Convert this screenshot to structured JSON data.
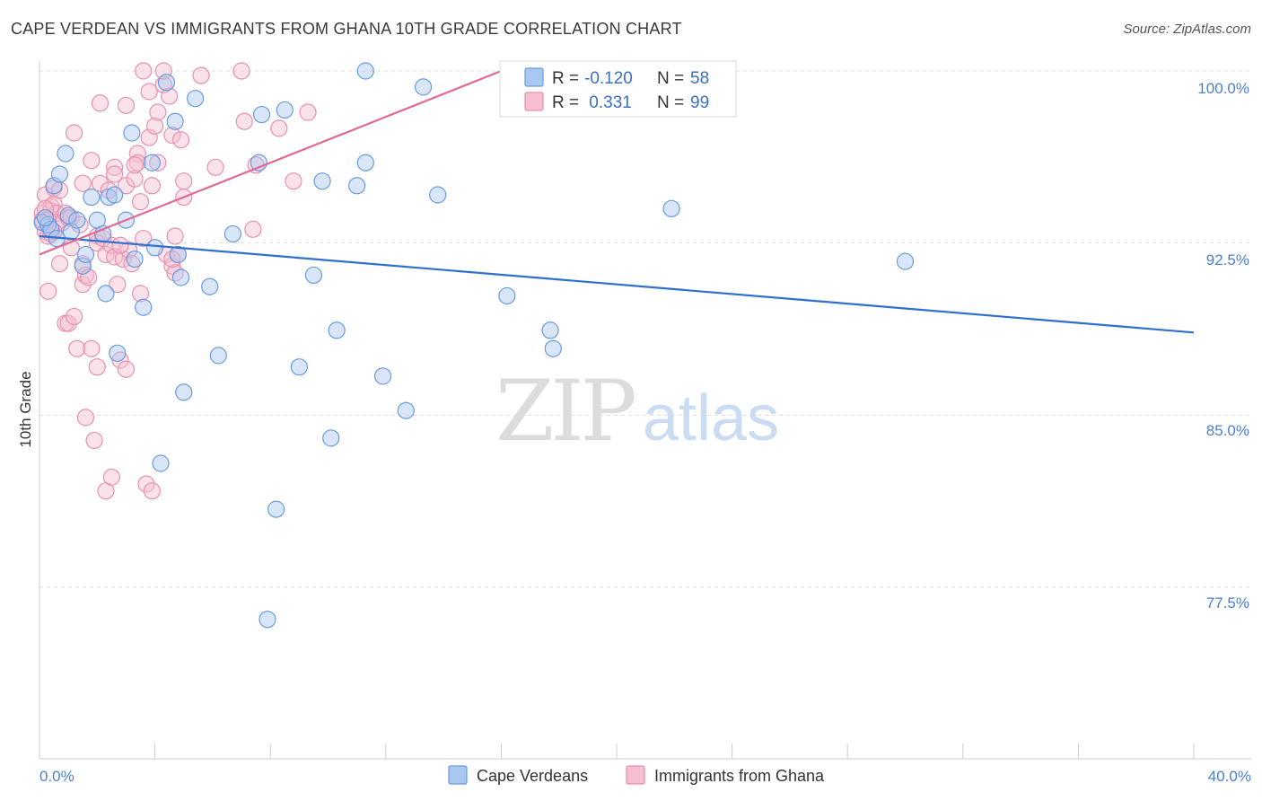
{
  "title": "CAPE VERDEAN VS IMMIGRANTS FROM GHANA 10TH GRADE CORRELATION CHART",
  "source": "Source: ZipAtlas.com",
  "watermark": {
    "zip": "ZIP",
    "atlas": "atlas"
  },
  "colors": {
    "blue_fill": "#a9c8f0",
    "blue_stroke": "#6b9be0",
    "blue_line": "#2f6fce",
    "pink_fill": "#f5bfd0",
    "pink_stroke": "#e890ad",
    "pink_line": "#e06a96",
    "tick_text": "#4a7fd0",
    "grid": "#dddddd"
  },
  "legend": {
    "rows": [
      {
        "r_label": "R =",
        "r_value": "-0.120",
        "n_label": "N =",
        "n_value": "58"
      },
      {
        "r_label": "R =",
        "r_value": " 0.331",
        "n_label": "N =",
        "n_value": "99"
      }
    ]
  },
  "bottom_legend": [
    "Cape Verdeans",
    "Immigrants from Ghana"
  ],
  "chart_data": {
    "type": "scatter",
    "title": "CAPE VERDEAN VS IMMIGRANTS FROM GHANA 10TH GRADE CORRELATION CHART",
    "xlabel": "",
    "ylabel": "10th Grade",
    "xlim": [
      0,
      40
    ],
    "ylim": [
      71.0,
      101.0
    ],
    "x_tick_labels": [
      "0.0%",
      "40.0%"
    ],
    "y_ticks": [
      77.5,
      85.0,
      92.5,
      100.0
    ],
    "y_tick_labels": [
      "77.5%",
      "85.0%",
      "92.5%",
      "100.0%"
    ],
    "grid": true,
    "series": [
      {
        "name": "Cape Verdeans",
        "color": "blue",
        "R": -0.12,
        "N": 58,
        "trend": {
          "x": [
            0,
            40
          ],
          "y": [
            92.8,
            88.6
          ]
        },
        "points": [
          [
            0.1,
            93.4
          ],
          [
            0.3,
            93.3
          ],
          [
            0.4,
            93.1
          ],
          [
            0.5,
            95.0
          ],
          [
            0.6,
            92.7
          ],
          [
            0.7,
            95.5
          ],
          [
            0.9,
            96.4
          ],
          [
            1.0,
            93.7
          ],
          [
            1.1,
            93.0
          ],
          [
            1.3,
            93.5
          ],
          [
            1.5,
            91.5
          ],
          [
            1.6,
            92.0
          ],
          [
            1.8,
            94.5
          ],
          [
            2.0,
            93.5
          ],
          [
            2.2,
            92.9
          ],
          [
            2.3,
            90.3
          ],
          [
            2.4,
            94.5
          ],
          [
            2.6,
            94.6
          ],
          [
            2.7,
            87.7
          ],
          [
            3.0,
            93.5
          ],
          [
            3.2,
            97.3
          ],
          [
            3.3,
            91.8
          ],
          [
            3.6,
            89.7
          ],
          [
            3.9,
            96.0
          ],
          [
            4.0,
            92.3
          ],
          [
            4.2,
            82.9
          ],
          [
            4.4,
            99.5
          ],
          [
            4.7,
            97.8
          ],
          [
            4.8,
            92.0
          ],
          [
            4.9,
            91.0
          ],
          [
            5.0,
            86.0
          ],
          [
            5.4,
            98.8
          ],
          [
            5.9,
            90.6
          ],
          [
            6.2,
            87.6
          ],
          [
            6.7,
            92.9
          ],
          [
            7.6,
            96.0
          ],
          [
            7.7,
            98.1
          ],
          [
            7.9,
            76.1
          ],
          [
            8.2,
            80.9
          ],
          [
            8.5,
            98.3
          ],
          [
            9.0,
            87.1
          ],
          [
            9.5,
            91.1
          ],
          [
            9.8,
            95.2
          ],
          [
            10.1,
            84.0
          ],
          [
            10.3,
            88.7
          ],
          [
            11.0,
            95.0
          ],
          [
            11.3,
            96.0
          ],
          [
            11.3,
            100.0
          ],
          [
            11.9,
            86.7
          ],
          [
            12.7,
            85.2
          ],
          [
            13.3,
            99.3
          ],
          [
            13.8,
            94.6
          ],
          [
            16.2,
            90.2
          ],
          [
            17.7,
            88.7
          ],
          [
            17.8,
            87.9
          ],
          [
            21.9,
            94.0
          ],
          [
            30.0,
            91.7
          ],
          [
            0.2,
            93.6
          ]
        ]
      },
      {
        "name": "Immigrants from Ghana",
        "color": "pink",
        "R": 0.331,
        "N": 99,
        "trend": {
          "x": [
            0,
            16.0
          ],
          "y": [
            92.0,
            100.0
          ]
        },
        "points": [
          [
            0.1,
            93.8
          ],
          [
            0.1,
            93.5
          ],
          [
            0.2,
            94.6
          ],
          [
            0.2,
            93.0
          ],
          [
            0.3,
            92.8
          ],
          [
            0.3,
            90.4
          ],
          [
            0.4,
            94.1
          ],
          [
            0.4,
            93.9
          ],
          [
            0.5,
            94.9
          ],
          [
            0.5,
            94.2
          ],
          [
            0.6,
            93.8
          ],
          [
            0.6,
            93.4
          ],
          [
            0.7,
            91.6
          ],
          [
            0.7,
            94.8
          ],
          [
            0.8,
            93.4
          ],
          [
            0.9,
            93.8
          ],
          [
            0.9,
            89.0
          ],
          [
            1.0,
            89.0
          ],
          [
            1.1,
            93.6
          ],
          [
            1.2,
            89.3
          ],
          [
            1.2,
            97.3
          ],
          [
            1.3,
            87.9
          ],
          [
            1.4,
            93.3
          ],
          [
            1.5,
            91.6
          ],
          [
            1.5,
            95.1
          ],
          [
            1.5,
            90.7
          ],
          [
            1.6,
            84.9
          ],
          [
            1.6,
            91.1
          ],
          [
            1.7,
            91.0
          ],
          [
            1.8,
            87.9
          ],
          [
            1.8,
            96.1
          ],
          [
            1.9,
            83.9
          ],
          [
            2.0,
            92.8
          ],
          [
            2.0,
            92.5
          ],
          [
            2.0,
            87.1
          ],
          [
            2.1,
            98.6
          ],
          [
            2.1,
            95.1
          ],
          [
            2.2,
            92.7
          ],
          [
            2.3,
            81.7
          ],
          [
            2.3,
            92.0
          ],
          [
            2.4,
            94.8
          ],
          [
            2.5,
            82.3
          ],
          [
            2.5,
            92.4
          ],
          [
            2.6,
            91.9
          ],
          [
            2.6,
            95.8
          ],
          [
            2.6,
            95.5
          ],
          [
            2.7,
            90.7
          ],
          [
            2.8,
            87.4
          ],
          [
            2.9,
            91.8
          ],
          [
            3.0,
            87.0
          ],
          [
            3.0,
            98.5
          ],
          [
            3.0,
            95.0
          ],
          [
            3.1,
            92.2
          ],
          [
            3.2,
            91.6
          ],
          [
            3.3,
            95.3
          ],
          [
            3.4,
            96.4
          ],
          [
            3.4,
            96.0
          ],
          [
            3.5,
            90.3
          ],
          [
            3.5,
            94.3
          ],
          [
            3.6,
            92.7
          ],
          [
            3.6,
            100.0
          ],
          [
            3.7,
            82.0
          ],
          [
            3.8,
            99.1
          ],
          [
            3.8,
            97.1
          ],
          [
            3.9,
            81.7
          ],
          [
            3.9,
            95.0
          ],
          [
            4.0,
            97.6
          ],
          [
            4.1,
            96.0
          ],
          [
            4.1,
            98.2
          ],
          [
            4.3,
            99.4
          ],
          [
            4.3,
            100.0
          ],
          [
            4.4,
            92.0
          ],
          [
            4.5,
            98.9
          ],
          [
            4.6,
            91.5
          ],
          [
            4.6,
            97.2
          ],
          [
            4.7,
            91.2
          ],
          [
            4.7,
            92.8
          ],
          [
            4.8,
            92.0
          ],
          [
            4.9,
            97.0
          ],
          [
            5.0,
            95.2
          ],
          [
            5.0,
            94.5
          ],
          [
            5.6,
            99.8
          ],
          [
            6.1,
            95.8
          ],
          [
            7.0,
            100.0
          ],
          [
            7.1,
            97.8
          ],
          [
            7.4,
            93.1
          ],
          [
            7.5,
            95.9
          ],
          [
            8.3,
            97.5
          ],
          [
            8.8,
            95.2
          ],
          [
            9.3,
            98.2
          ],
          [
            0.2,
            94.0
          ],
          [
            0.3,
            93.5
          ],
          [
            0.4,
            92.9
          ],
          [
            0.5,
            93.0
          ],
          [
            1.0,
            93.6
          ],
          [
            1.1,
            92.3
          ],
          [
            2.8,
            92.4
          ],
          [
            3.3,
            95.9
          ],
          [
            4.6,
            91.8
          ]
        ]
      }
    ]
  }
}
